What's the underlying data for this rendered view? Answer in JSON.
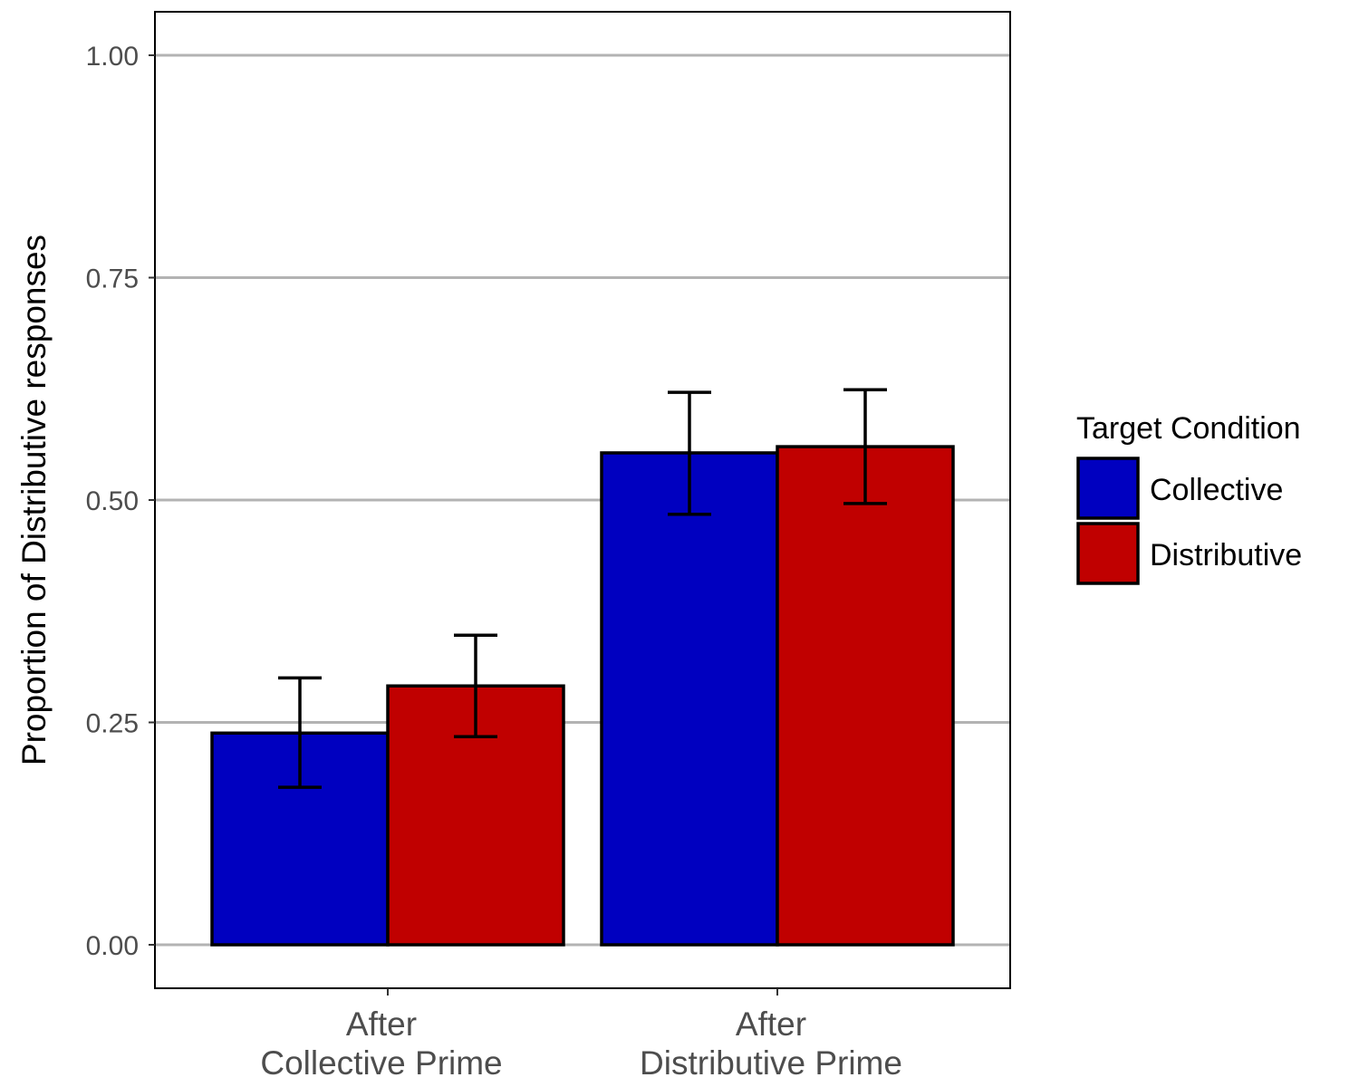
{
  "chart_data": {
    "type": "bar",
    "title": "",
    "xlabel": "",
    "ylabel": "Proportion of Distributive responses",
    "ylim": [
      -0.1,
      1.05
    ],
    "yticks": [
      "0.00",
      "0.25",
      "0.50",
      "0.75",
      "1.00"
    ],
    "ytick_values": [
      0,
      0.25,
      0.5,
      0.75,
      1.0
    ],
    "categories": [
      [
        "After",
        "Collective Prime"
      ],
      [
        "After",
        "Distributive Prime"
      ]
    ],
    "series": [
      {
        "name": "Collective",
        "color": "#0000c0",
        "values": [
          0.238,
          0.553
        ],
        "ci_low": [
          0.177,
          0.484
        ],
        "ci_high": [
          0.3,
          0.621
        ]
      },
      {
        "name": "Distributive",
        "color": "#c00000",
        "values": [
          0.291,
          0.56
        ],
        "ci_low": [
          0.234,
          0.496
        ],
        "ci_high": [
          0.348,
          0.624
        ]
      }
    ],
    "legend": {
      "title": "Target Condition",
      "position": "right"
    },
    "grid": "horizontal major"
  }
}
